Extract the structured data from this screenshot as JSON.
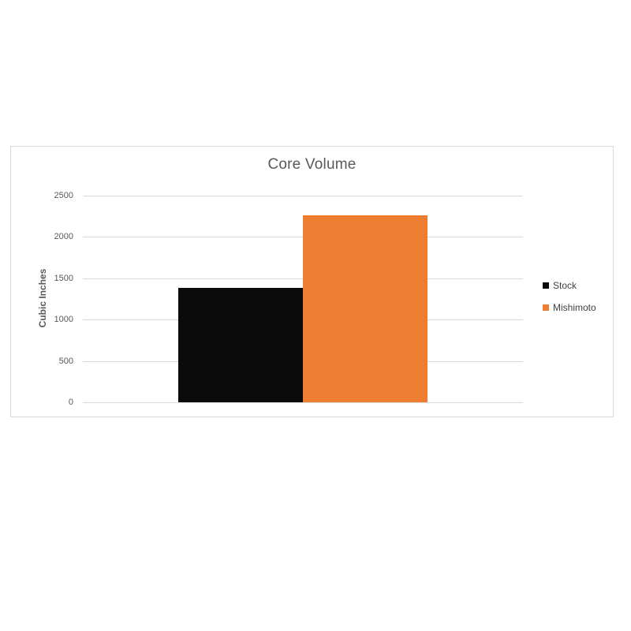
{
  "chart": {
    "title": "Core Volume",
    "y_axis_title": "Cubic Inches"
  },
  "colors": {
    "stock_bar": "#0b0b0b",
    "mishimoto_bar": "#ed7d31",
    "gridline": "#d9d9d9",
    "frame_border": "#d9d9d9",
    "axis_text": "#595959",
    "legend_text": "#3f3f3f",
    "background": "#ffffff"
  },
  "chart_data": {
    "type": "bar",
    "title": "Core Volume",
    "xlabel": "",
    "ylabel": "Cubic Inches",
    "categories": [
      "Core Volume"
    ],
    "series": [
      {
        "name": "Stock",
        "value": 1380,
        "color": "#0b0b0b"
      },
      {
        "name": "Mishimoto",
        "value": 2260,
        "color": "#ed7d31"
      }
    ],
    "ylim": [
      0,
      2500
    ],
    "yticks": [
      0,
      500,
      1000,
      1500,
      2000,
      2500
    ],
    "grid": true,
    "legend_position": "right"
  }
}
